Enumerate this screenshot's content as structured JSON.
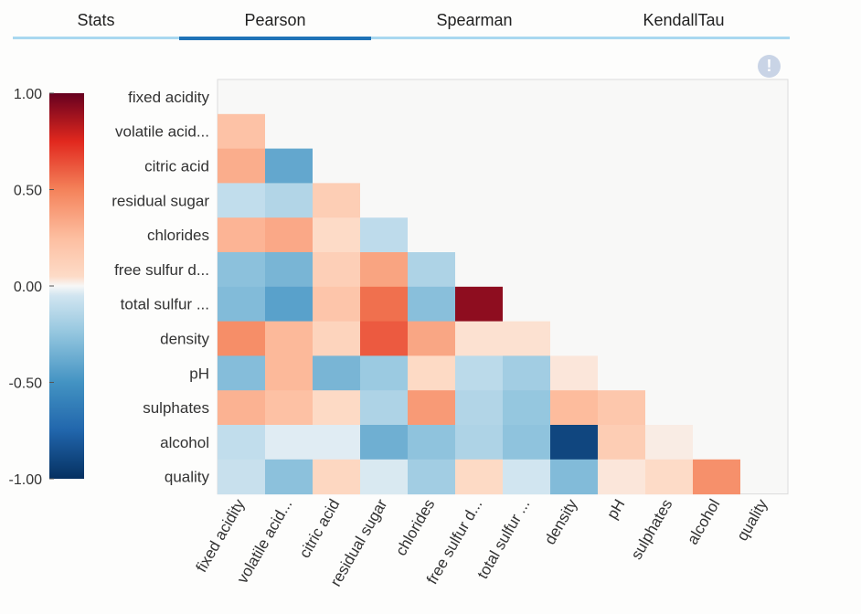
{
  "tabs": [
    {
      "label": "Stats",
      "active": false
    },
    {
      "label": "Pearson",
      "active": true
    },
    {
      "label": "Spearman",
      "active": false
    },
    {
      "label": "KendallTau",
      "active": false
    }
  ],
  "info_icon": "exclamation-icon",
  "colors": {
    "tab_line": "#a9d8f0",
    "tab_active": "#1f73b7",
    "info": "#c9d4e6"
  },
  "chart_data": {
    "type": "heatmap",
    "title": "",
    "labels": [
      "fixed acidity",
      "volatile acid...",
      "citric acid",
      "residual sugar",
      "chlorides",
      "free sulfur d...",
      "total sulfur ...",
      "density",
      "pH",
      "sulphates",
      "alcohol",
      "quality"
    ],
    "mask": "lower-triangle",
    "colorscale": "RdBu_r",
    "colorbar": {
      "min": -1.0,
      "max": 1.0,
      "ticks": [
        "1.00",
        "0.50",
        "0.00",
        "-0.50",
        "-1.00"
      ]
    },
    "values": [
      [],
      [
        0.22
      ],
      [
        0.32,
        -0.4
      ],
      [
        -0.1,
        -0.15,
        0.14
      ],
      [
        0.29,
        0.34,
        0.05,
        -0.11
      ],
      [
        -0.27,
        -0.33,
        0.13,
        0.36,
        -0.16
      ],
      [
        -0.3,
        -0.43,
        0.2,
        0.55,
        -0.28,
        0.92
      ],
      [
        0.45,
        0.27,
        0.1,
        0.61,
        0.35,
        0.04,
        0.04
      ],
      [
        -0.29,
        0.27,
        -0.33,
        -0.22,
        0.06,
        -0.12,
        -0.2,
        0.03
      ],
      [
        0.3,
        0.23,
        0.06,
        -0.16,
        0.4,
        -0.15,
        -0.24,
        0.26,
        0.19
      ],
      [
        -0.1,
        -0.03,
        -0.03,
        -0.36,
        -0.26,
        -0.16,
        -0.26,
        -0.9,
        0.15,
        0.02
      ],
      [
        -0.08,
        -0.27,
        0.08,
        -0.04,
        -0.2,
        0.06,
        -0.05,
        -0.3,
        0.03,
        0.05,
        0.44
      ]
    ]
  }
}
